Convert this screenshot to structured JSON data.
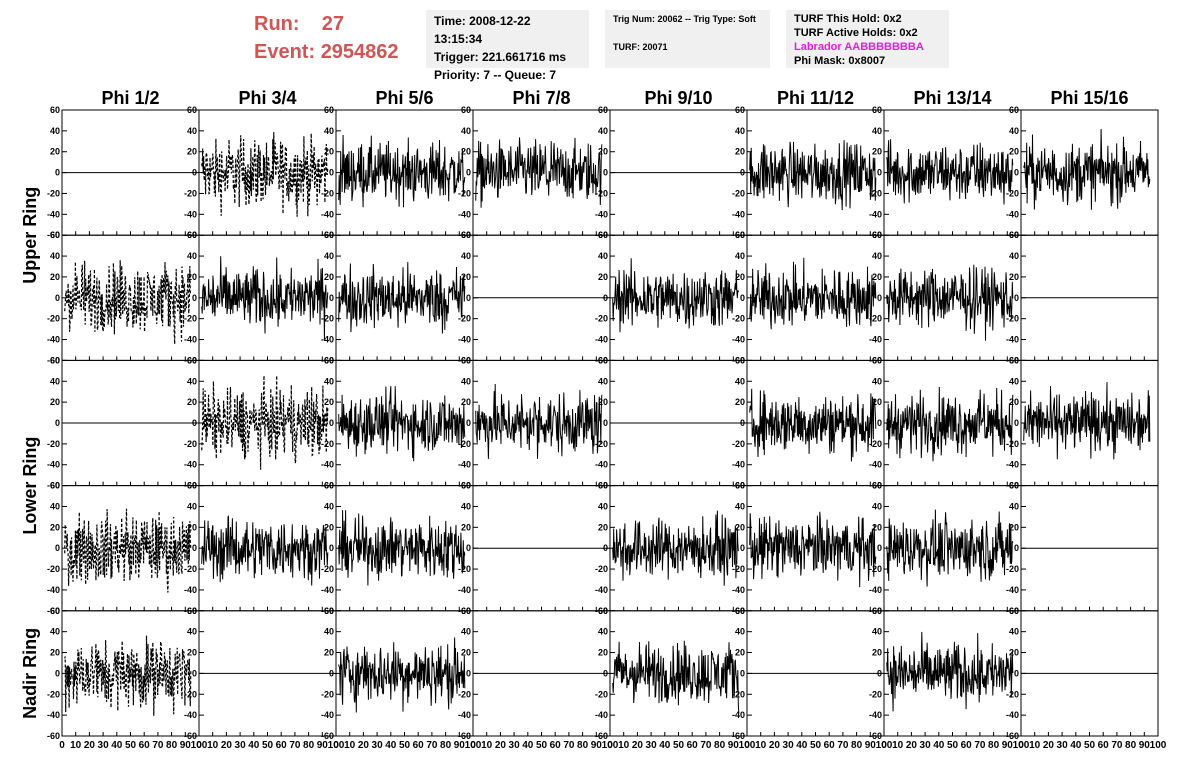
{
  "header": {
    "run_label": "Run:",
    "run_value": "27",
    "event_label": "Event:",
    "event_value": "2954862",
    "time_line": "Time: 2008-12-22 13:15:34",
    "trigger_line": "Trigger: 221.661716 ms",
    "priority_line": "Priority: 7 -- Queue: 7",
    "trig_num_line": "Trig Num: 20062 -- Trig Type: Soft",
    "turf_line": "TURF: 20071",
    "turf_hold_line": "TURF This Hold: 0x2",
    "turf_active_line": "TURF Active Holds: 0x2",
    "labrador_line": "Labrador AABBBBBBBA",
    "phi_mask_line": "Phi Mask: 0x8007",
    "labrador_color": "#e020e0",
    "run_color": "#d05656"
  },
  "chart_data": {
    "type": "line",
    "description_grid": "5 rows x 8 columns of waveform panels",
    "columns": [
      "Phi 1/2",
      "Phi 3/4",
      "Phi 5/6",
      "Phi 7/8",
      "Phi 9/10",
      "Phi 11/12",
      "Phi 13/14",
      "Phi 15/16"
    ],
    "rows": [
      "Upper Ring",
      "Upper Ring",
      "Lower Ring",
      "Lower Ring",
      "Nadir Ring"
    ],
    "row_labels": [
      {
        "label": "Upper Ring",
        "spans_rows": [
          0,
          1
        ]
      },
      {
        "label": "Lower Ring",
        "spans_rows": [
          2,
          3
        ]
      },
      {
        "label": "Nadir Ring",
        "spans_rows": [
          4
        ]
      }
    ],
    "xlim": [
      0,
      100
    ],
    "ylim": [
      -60,
      60
    ],
    "x_ticks": [
      0,
      10,
      20,
      30,
      40,
      50,
      60,
      70,
      80,
      90,
      100
    ],
    "y_ticks": [
      -60,
      -40,
      -20,
      0,
      20,
      40,
      60
    ],
    "panels": [
      [
        "flat",
        "dashed-signal",
        "noise",
        "noise",
        "flat",
        "noise",
        "noise",
        "noise"
      ],
      [
        "dashed-signal",
        "noise",
        "noise",
        "flat",
        "noise",
        "noise",
        "noise",
        "flat"
      ],
      [
        "flat",
        "dashed-signal",
        "noise",
        "noise",
        "flat",
        "noise",
        "noise",
        "noise"
      ],
      [
        "dashed-signal",
        "noise",
        "noise",
        "flat",
        "noise",
        "noise",
        "noise",
        "flat"
      ],
      [
        "dashed-signal",
        "flat",
        "noise",
        "flat",
        "noise",
        "flat",
        "noise",
        "flat"
      ]
    ],
    "series_color": "#000000"
  }
}
